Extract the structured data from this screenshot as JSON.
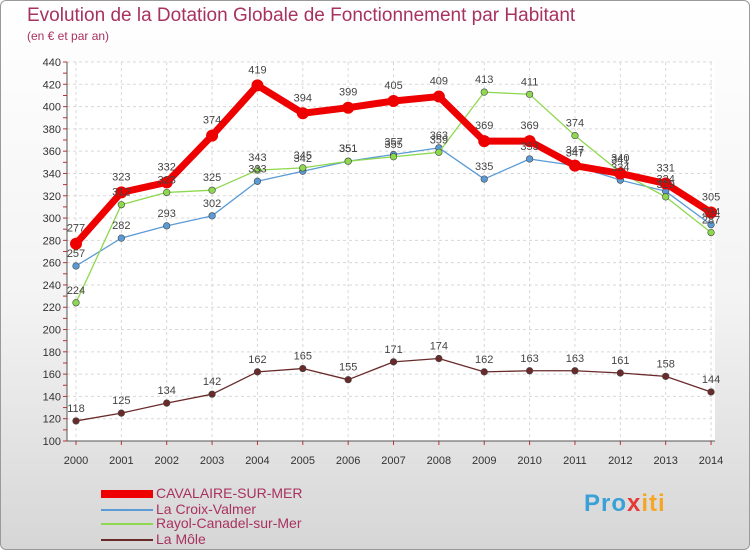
{
  "chart_data": {
    "type": "line",
    "title": "Evolution de la Dotation Globale de Fonctionnement par Habitant",
    "subtitle": "(en € et par an)",
    "xlabel": "",
    "ylabel": "",
    "ylim": [
      100,
      440
    ],
    "yticks": [
      "100",
      "120",
      "140",
      "160",
      "180",
      "200",
      "220",
      "240",
      "260",
      "280",
      "300",
      "320",
      "340",
      "360",
      "380",
      "400",
      "420",
      "440"
    ],
    "categories": [
      "2000",
      "2001",
      "2002",
      "2003",
      "2004",
      "2005",
      "2006",
      "2007",
      "2008",
      "2009",
      "2010",
      "2011",
      "2012",
      "2013",
      "2014"
    ],
    "series": [
      {
        "name": "CAVALAIRE-SUR-MER",
        "color": "#ee0000",
        "values": [
          277,
          323,
          332,
          374,
          419,
          394,
          399,
          405,
          409,
          369,
          369,
          347,
          340,
          331,
          305
        ]
      },
      {
        "name": "La Croix-Valmer",
        "color": "#5b9bd5",
        "values": [
          257,
          282,
          293,
          302,
          333,
          342,
          351,
          357,
          363,
          335,
          353,
          347,
          334,
          324,
          294
        ]
      },
      {
        "name": "Rayol-Canadel-sur-Mer",
        "color": "#8ed84f",
        "values": [
          224,
          312,
          323,
          325,
          343,
          345,
          351,
          355,
          359,
          413,
          411,
          374,
          341,
          319,
          287
        ]
      },
      {
        "name": "La Môle",
        "color": "#6b2a2a",
        "values": [
          118,
          125,
          134,
          142,
          162,
          165,
          155,
          171,
          174,
          162,
          163,
          163,
          161,
          158,
          144
        ]
      }
    ],
    "legend_position": "bottom-left"
  },
  "brand": {
    "prefix": "Pro",
    "x": "x",
    "suffix": "iti"
  }
}
